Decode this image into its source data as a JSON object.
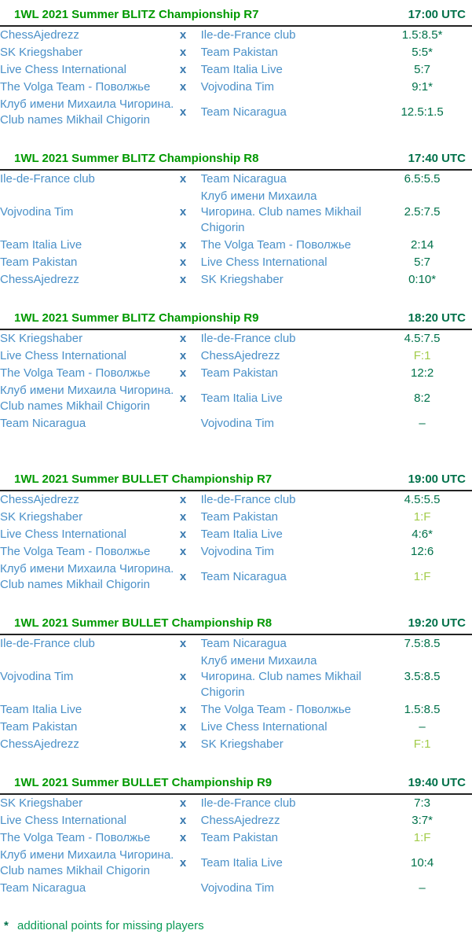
{
  "colors": {
    "title_green": "#009900",
    "time_green": "#00714a",
    "score_green": "#00714a",
    "forfeit_green": "#a2cc4a",
    "team_blue": "#4a90c8",
    "vs_blue": "#3778ae",
    "footnote_green": "#0a9a55",
    "rule_dark": "#222222"
  },
  "footnote": {
    "marker": "*",
    "text": "additional points for missing players"
  },
  "sections": [
    {
      "title": "1WL 2021 Summer BLITZ Championship R7",
      "time": "17:00 UTC",
      "spacer_before": false,
      "matches": [
        {
          "home": "ChessAjedrezz",
          "vs": "x",
          "away": "Ile-de-France club",
          "result": "1.5:8.5*"
        },
        {
          "home": "SK Kriegshaber",
          "vs": "x",
          "away": "Team Pakistan",
          "result": "5:5*"
        },
        {
          "home": "Live Chess International",
          "vs": "x",
          "away": "Team Italia Live",
          "result": "5:7"
        },
        {
          "home": "The Volga Team - Поволжье",
          "vs": "x",
          "away": "Vojvodina Tim",
          "result": "9:1*"
        },
        {
          "home": "Клуб имени Михаила Чигорина. Club names Mikhail Chigorin",
          "vs": "x",
          "away": "Team Nicaragua",
          "result": "12.5:1.5"
        }
      ]
    },
    {
      "title": "1WL 2021 Summer BLITZ Championship R8",
      "time": "17:40 UTC",
      "spacer_before": false,
      "matches": [
        {
          "home": "Ile-de-France club",
          "vs": "x",
          "away": "Team Nicaragua",
          "result": "6.5:5.5"
        },
        {
          "home": "Vojvodina Tim",
          "vs": "x",
          "away": "Клуб имени Михаила Чигорина. Club names Mikhail Chigorin",
          "result": "2.5:7.5"
        },
        {
          "home": "Team Italia Live",
          "vs": "x",
          "away": "The Volga Team - Поволжье",
          "result": "2:14"
        },
        {
          "home": "Team Pakistan",
          "vs": "x",
          "away": "Live Chess International",
          "result": "5:7"
        },
        {
          "home": "ChessAjedrezz",
          "vs": "x",
          "away": "SK Kriegshaber",
          "result": "0:10*"
        }
      ]
    },
    {
      "title": "1WL 2021 Summer BLITZ Championship R9",
      "time": "18:20 UTC",
      "spacer_before": false,
      "matches": [
        {
          "home": "SK Kriegshaber",
          "vs": "x",
          "away": "Ile-de-France club",
          "result": "4.5:7.5"
        },
        {
          "home": "Live Chess International",
          "vs": "x",
          "away": "ChessAjedrezz",
          "result": "F:1",
          "status": "forfeit"
        },
        {
          "home": "The Volga Team - Поволжье",
          "vs": "x",
          "away": "Team Pakistan",
          "result": "12:2"
        },
        {
          "home": "Клуб имени Михаила Чигорина. Club names Mikhail Chigorin",
          "vs": "x",
          "away": "Team Italia Live",
          "result": "8:2"
        },
        {
          "home": "Team Nicaragua",
          "vs": "",
          "away": "Vojvodina Tim",
          "result": "–"
        }
      ]
    },
    {
      "title": "1WL 2021 Summer BULLET Championship R7",
      "time": "19:00 UTC",
      "spacer_before": true,
      "matches": [
        {
          "home": "ChessAjedrezz",
          "vs": "x",
          "away": "Ile-de-France club",
          "result": "4.5:5.5"
        },
        {
          "home": "SK Kriegshaber",
          "vs": "x",
          "away": "Team Pakistan",
          "result": "1:F",
          "status": "forfeit"
        },
        {
          "home": "Live Chess International",
          "vs": "x",
          "away": "Team Italia Live",
          "result": "4:6*"
        },
        {
          "home": "The Volga Team - Поволжье",
          "vs": "x",
          "away": "Vojvodina Tim",
          "result": "12:6"
        },
        {
          "home": "Клуб имени Михаила Чигорина. Club names Mikhail Chigorin",
          "vs": "x",
          "away": "Team Nicaragua",
          "result": "1:F",
          "status": "forfeit"
        }
      ]
    },
    {
      "title": "1WL 2021 Summer BULLET Championship R8",
      "time": "19:20 UTC",
      "spacer_before": false,
      "matches": [
        {
          "home": "Ile-de-France club",
          "vs": "x",
          "away": "Team Nicaragua",
          "result": "7.5:8.5"
        },
        {
          "home": "Vojvodina Tim",
          "vs": "x",
          "away": "Клуб имени Михаила Чигорина. Club names Mikhail Chigorin",
          "result": "3.5:8.5"
        },
        {
          "home": "Team Italia Live",
          "vs": "x",
          "away": "The Volga Team - Поволжье",
          "result": "1.5:8.5"
        },
        {
          "home": "Team Pakistan",
          "vs": "x",
          "away": "Live Chess International",
          "result": "–"
        },
        {
          "home": "ChessAjedrezz",
          "vs": "x",
          "away": "SK Kriegshaber",
          "result": "F:1",
          "status": "forfeit"
        }
      ]
    },
    {
      "title": "1WL 2021 Summer BULLET Championship R9",
      "time": "19:40 UTC",
      "spacer_before": false,
      "matches": [
        {
          "home": "SK Kriegshaber",
          "vs": "x",
          "away": "Ile-de-France club",
          "result": "7:3"
        },
        {
          "home": "Live Chess International",
          "vs": "x",
          "away": "ChessAjedrezz",
          "result": "3:7*"
        },
        {
          "home": "The Volga Team - Поволжье",
          "vs": "x",
          "away": "Team Pakistan",
          "result": "1:F",
          "status": "forfeit"
        },
        {
          "home": "Клуб имени Михаила Чигорина. Club names Mikhail Chigorin",
          "vs": "x",
          "away": "Team Italia Live",
          "result": "10:4"
        },
        {
          "home": "Team Nicaragua",
          "vs": "",
          "away": "Vojvodina Tim",
          "result": "–"
        }
      ]
    }
  ]
}
